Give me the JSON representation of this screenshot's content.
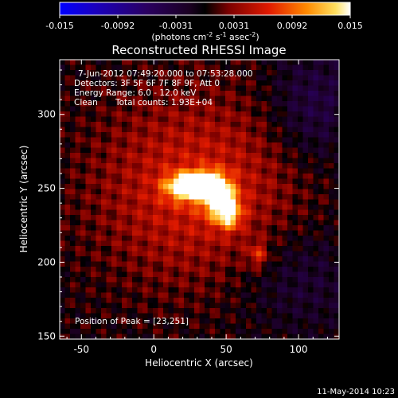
{
  "chart_data": {
    "type": "heatmap",
    "title": "Reconstructed RHESSI Image",
    "xlabel": "Heliocentric X (arcsec)",
    "ylabel": "Heliocentric Y (arcsec)",
    "xlim": [
      -65,
      128
    ],
    "ylim": [
      148,
      337
    ],
    "xticks": [
      -50,
      0,
      50,
      100
    ],
    "yticks": [
      150,
      200,
      250,
      300
    ],
    "colorbar": {
      "range": [
        -0.015,
        0.015
      ],
      "ticks": [
        "-0.015",
        "-0.0092",
        "-0.0031",
        "0.0031",
        "0.0092",
        "0.015"
      ],
      "units_label": "(photons cm",
      "units_exp1": "-2",
      "units_mid": " s",
      "units_exp2": "-1",
      "units_mid2": " asec",
      "units_exp3": "-2",
      "units_end": ")"
    },
    "annotations": [
      "7-Jun-2012 07:49:20.000 to 07:53:28.000",
      "Detectors: 3F 5F 6F 7F 8F 9F, Att 0",
      "Energy Range: 6.0 - 12.0 keV",
      "Clean",
      "Total counts: 1.93E+04"
    ],
    "peak_label": "Position of Peak = [23,251]",
    "peak": [
      23,
      251
    ],
    "sources": [
      {
        "x": 23,
        "y": 251,
        "sx": 10,
        "sy": 6,
        "amp": 0.015
      },
      {
        "x": 45,
        "y": 244,
        "sx": 8,
        "sy": 9,
        "amp": 0.0125
      },
      {
        "x": 52,
        "y": 232,
        "sx": 6,
        "sy": 7,
        "amp": 0.009
      },
      {
        "x": 35,
        "y": 254,
        "sx": 8,
        "sy": 5,
        "amp": 0.011
      },
      {
        "x": 30,
        "y": 250,
        "sx": 50,
        "sy": 45,
        "amp": 0.006
      },
      {
        "x": 72,
        "y": 205,
        "sx": 5,
        "sy": 6,
        "amp": 0.0055
      },
      {
        "x": 110,
        "y": 305,
        "sx": 22,
        "sy": 28,
        "amp": -0.004
      },
      {
        "x": 100,
        "y": 190,
        "sx": 30,
        "sy": 25,
        "amp": -0.003
      }
    ]
  },
  "footer": {
    "date": "11-May-2014 10:23"
  }
}
